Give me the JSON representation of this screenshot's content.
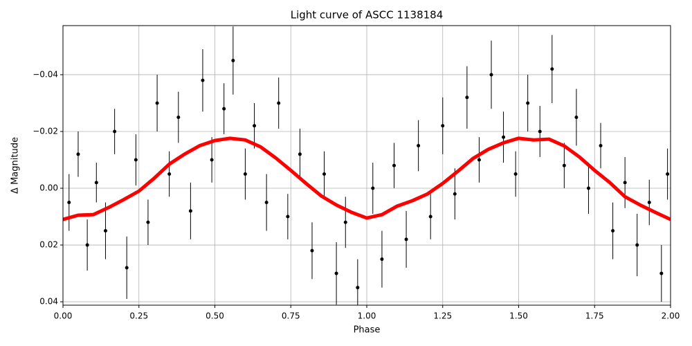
{
  "chart_data": {
    "type": "scatter",
    "title": "Light curve of ASCC 1138184",
    "x_label": "Phase",
    "y_label": "Δ Magnitude",
    "xlim": [
      0,
      2
    ],
    "ylim": [
      -0.0573,
      0.0412
    ],
    "y_inverted": true,
    "grid": true,
    "xticks": [
      {
        "value": 0,
        "label": "0.00"
      },
      {
        "value": 0.25,
        "label": "0.25"
      },
      {
        "value": 0.5,
        "label": "0.50"
      },
      {
        "value": 0.75,
        "label": "0.75"
      },
      {
        "value": 1,
        "label": "1.00"
      },
      {
        "value": 1.25,
        "label": "1.25"
      },
      {
        "value": 1.5,
        "label": "1.50"
      },
      {
        "value": 1.75,
        "label": "1.75"
      },
      {
        "value": 2,
        "label": "2.00"
      }
    ],
    "yticks": [
      {
        "value": -0.04,
        "label": "−0.04"
      },
      {
        "value": -0.02,
        "label": "−0.02"
      },
      {
        "value": 0,
        "label": "0.00"
      },
      0.02,
      0.04
    ],
    "series": [
      {
        "type": "errorbar",
        "color": "#000000",
        "x": [
          0.02,
          0.05,
          0.08,
          0.11,
          0.14,
          0.17,
          0.21,
          0.24,
          0.28,
          0.31,
          0.35,
          0.38,
          0.42,
          0.46,
          0.49,
          0.53,
          0.56,
          0.6,
          0.63,
          0.67,
          0.71,
          0.74,
          0.78,
          0.82,
          0.86,
          0.9,
          0.93,
          0.97,
          1.02,
          1.05,
          1.09,
          1.13,
          1.17,
          1.21,
          1.25,
          1.29,
          1.33,
          1.37,
          1.41,
          1.45,
          1.49,
          1.53,
          1.57,
          1.61,
          1.65,
          1.69,
          1.73,
          1.77,
          1.81,
          1.85,
          1.89,
          1.93,
          1.97,
          1.99
        ],
        "values": [
          0.005,
          -0.012,
          0.02,
          -0.002,
          0.015,
          -0.02,
          0.028,
          -0.01,
          0.012,
          -0.03,
          -0.005,
          -0.025,
          0.008,
          -0.038,
          -0.01,
          -0.028,
          -0.045,
          -0.005,
          -0.022,
          0.005,
          -0.03,
          0.01,
          -0.012,
          0.022,
          -0.005,
          0.03,
          0.012,
          0.035,
          0.0,
          0.025,
          -0.008,
          0.018,
          -0.015,
          0.01,
          -0.022,
          0.002,
          -0.032,
          -0.01,
          -0.04,
          -0.018,
          -0.005,
          -0.03,
          -0.02,
          -0.042,
          -0.008,
          -0.025,
          0.0,
          -0.015,
          0.015,
          -0.002,
          0.02,
          0.005,
          0.03,
          -0.005
        ],
        "errors": [
          0.01,
          0.008,
          0.009,
          0.007,
          0.01,
          0.008,
          0.011,
          0.009,
          0.008,
          0.01,
          0.008,
          0.009,
          0.01,
          0.011,
          0.008,
          0.009,
          0.012,
          0.009,
          0.008,
          0.01,
          0.009,
          0.008,
          0.009,
          0.01,
          0.008,
          0.011,
          0.009,
          0.01,
          0.009,
          0.01,
          0.008,
          0.01,
          0.009,
          0.008,
          0.01,
          0.009,
          0.011,
          0.008,
          0.012,
          0.009,
          0.008,
          0.01,
          0.009,
          0.012,
          0.008,
          0.01,
          0.009,
          0.008,
          0.01,
          0.009,
          0.011,
          0.008,
          0.01,
          0.009
        ]
      },
      {
        "type": "line",
        "color": "#ff0000",
        "x": [
          0,
          0.05,
          0.1,
          0.15,
          0.2,
          0.25,
          0.3,
          0.35,
          0.4,
          0.45,
          0.5,
          0.55,
          0.6,
          0.65,
          0.7,
          0.75,
          0.8,
          0.85,
          0.9,
          0.95,
          1,
          1.05,
          1.1,
          1.15,
          1.2,
          1.25,
          1.3,
          1.35,
          1.4,
          1.45,
          1.5,
          1.55,
          1.6,
          1.65,
          1.7,
          1.75,
          1.8,
          1.85,
          1.9,
          1.95,
          2
        ],
        "values": [
          0.011,
          0.0095,
          0.0093,
          0.0068,
          0.004,
          0.001,
          -0.0035,
          -0.0085,
          -0.012,
          -0.015,
          -0.0168,
          -0.0176,
          -0.017,
          -0.0146,
          -0.0107,
          -0.0063,
          -0.0017,
          0.0027,
          0.0059,
          0.0085,
          0.0105,
          0.0093,
          0.0063,
          0.0044,
          0.002,
          -0.0017,
          -0.006,
          -0.0105,
          -0.0137,
          -0.016,
          -0.0176,
          -0.017,
          -0.0173,
          -0.0149,
          -0.011,
          -0.0063,
          -0.002,
          0.003,
          0.0059,
          0.0085,
          0.011
        ]
      }
    ]
  }
}
